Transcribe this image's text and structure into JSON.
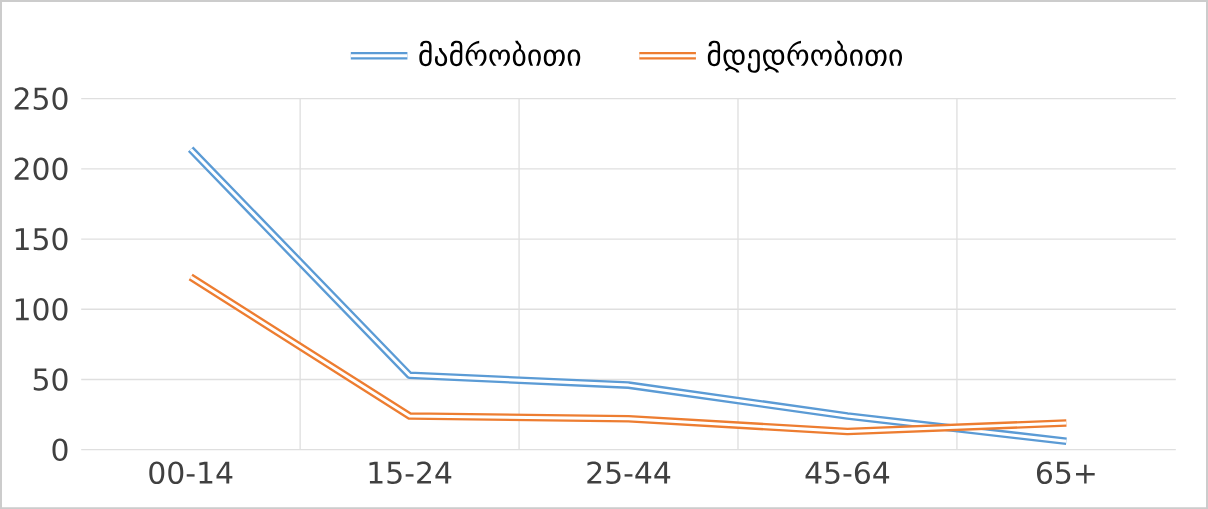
{
  "chart_data": {
    "type": "line",
    "categories": [
      "00-14",
      "15-24",
      "25-44",
      "45-64",
      "65+"
    ],
    "series": [
      {
        "name": "მამრობითი",
        "color": "#5b9bd5",
        "values": [
          214,
          53,
          46,
          24,
          6
        ]
      },
      {
        "name": "მდედრობითი",
        "color": "#ed7d31",
        "values": [
          123,
          24,
          22,
          13,
          19
        ]
      }
    ],
    "ylim": [
      0,
      250
    ],
    "yticks": [
      0,
      50,
      100,
      150,
      200,
      250
    ],
    "grid": true,
    "legend": "top",
    "marker": "none",
    "line_style": "solid"
  }
}
